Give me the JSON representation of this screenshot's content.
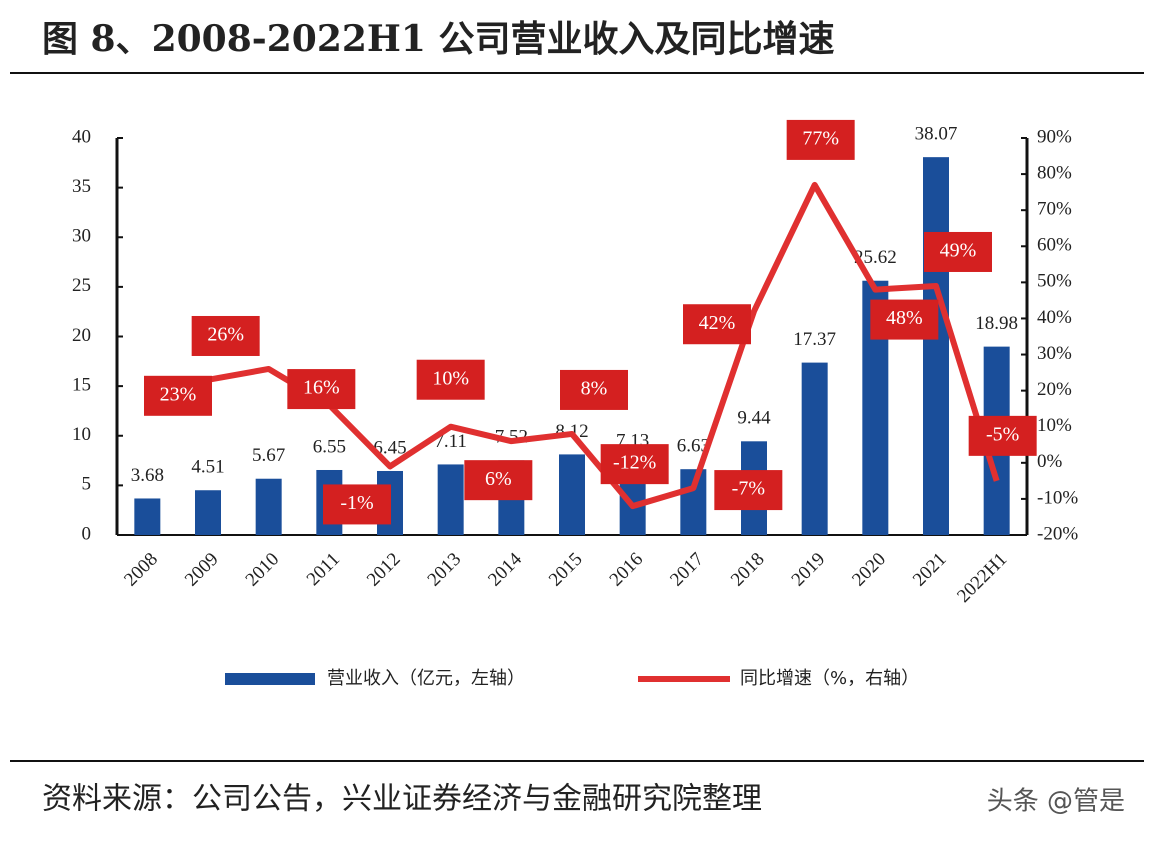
{
  "chart_data": {
    "type": "bar-line",
    "title": "图 8、2008-2022H1 公司营业收入及同比增速",
    "source": "资料来源：公司公告，兴业证券经济与金融研究院整理",
    "watermark": "头条 @管是",
    "categories": [
      "2008",
      "2009",
      "2010",
      "2011",
      "2012",
      "2013",
      "2014",
      "2015",
      "2016",
      "2017",
      "2018",
      "2019",
      "2020",
      "2021",
      "2022H1"
    ],
    "series": [
      {
        "name": "营业收入（亿元，左轴）",
        "type": "bar",
        "color": "#1a4e9a",
        "values": [
          3.68,
          4.51,
          5.67,
          6.55,
          6.45,
          7.11,
          7.52,
          8.12,
          7.13,
          6.63,
          9.44,
          17.37,
          25.62,
          38.07,
          18.98
        ]
      },
      {
        "name": "同比增速（%，右轴）",
        "type": "line",
        "axis": "y2",
        "color": "#e03030",
        "values": [
          22,
          23,
          26,
          16,
          -1,
          10,
          6,
          8,
          -12,
          -7,
          42,
          77,
          48,
          49,
          -5
        ],
        "value_labels": [
          null,
          "23%",
          "26%",
          "16%",
          "-1%",
          "10%",
          "6%",
          "8%",
          "-12%",
          "-7%",
          "42%",
          "77%",
          "48%",
          "49%",
          "-5%"
        ]
      }
    ],
    "ylim": [
      0,
      40
    ],
    "yticks": [
      0,
      5,
      10,
      15,
      20,
      25,
      30,
      35,
      40
    ],
    "y2lim": [
      -20,
      90
    ],
    "y2ticks": [
      {
        "value": -20,
        "label": "-20%"
      },
      {
        "value": -10,
        "label": "-10%"
      },
      {
        "value": 0,
        "label": "0%"
      },
      {
        "value": 10,
        "label": "10%"
      },
      {
        "value": 20,
        "label": "20%"
      },
      {
        "value": 30,
        "label": "30%"
      },
      {
        "value": 40,
        "label": "40%"
      },
      {
        "value": 50,
        "label": "50%"
      },
      {
        "value": 60,
        "label": "60%"
      },
      {
        "value": 70,
        "label": "70%"
      },
      {
        "value": 80,
        "label": "80%"
      },
      {
        "value": 90,
        "label": "90%"
      }
    ],
    "legend": "bottom"
  }
}
